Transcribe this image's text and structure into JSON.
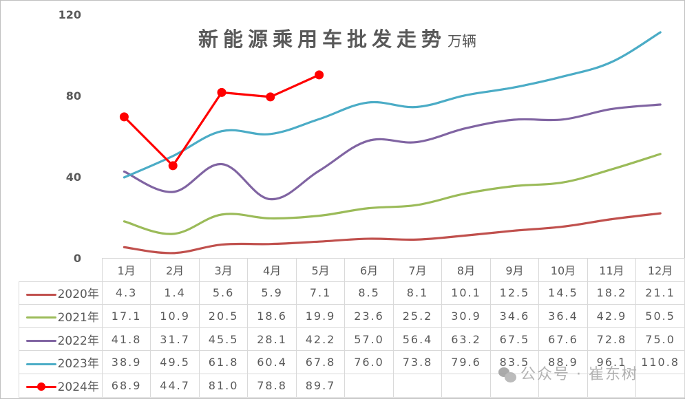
{
  "chart_data": {
    "type": "line",
    "title": "新能源乘用车批发走势",
    "unit": "万辆",
    "xlabel": "",
    "ylabel": "",
    "ylim": [
      0,
      120
    ],
    "yticks": [
      "120",
      "80",
      "40",
      "0"
    ],
    "grid": false,
    "legend_position": "table-left",
    "categories": [
      "1月",
      "2月",
      "3月",
      "4月",
      "5月",
      "6月",
      "7月",
      "8月",
      "9月",
      "10月",
      "11月",
      "12月"
    ],
    "series": [
      {
        "name": "2020年",
        "color": "#c0504d",
        "marker": false,
        "values": [
          4.3,
          1.4,
          5.6,
          5.9,
          7.1,
          8.5,
          8.1,
          10.1,
          12.5,
          14.5,
          18.2,
          21.1
        ],
        "labels": [
          "4.3",
          "1.4",
          "5.6",
          "5.9",
          "7.1",
          "8.5",
          "8.1",
          "10.1",
          "12.5",
          "14.5",
          "18.2",
          "21.1"
        ]
      },
      {
        "name": "2021年",
        "color": "#9bbb59",
        "marker": false,
        "values": [
          17.1,
          10.9,
          20.5,
          18.6,
          19.9,
          23.6,
          25.2,
          30.9,
          34.6,
          36.4,
          42.9,
          50.5
        ],
        "labels": [
          "17.1",
          "10.9",
          "20.5",
          "18.6",
          "19.9",
          "23.6",
          "25.2",
          "30.9",
          "34.6",
          "36.4",
          "42.9",
          "50.5"
        ]
      },
      {
        "name": "2022年",
        "color": "#8064a2",
        "marker": false,
        "values": [
          41.8,
          31.7,
          45.5,
          28.1,
          42.2,
          57.0,
          56.4,
          63.2,
          67.5,
          67.6,
          72.8,
          75.0
        ],
        "labels": [
          "41.8",
          "31.7",
          "45.5",
          "28.1",
          "42.2",
          "57.0",
          "56.4",
          "63.2",
          "67.5",
          "67.6",
          "72.8",
          "75.0"
        ]
      },
      {
        "name": "2023年",
        "color": "#4bacc6",
        "marker": false,
        "values": [
          38.9,
          49.5,
          61.8,
          60.4,
          67.8,
          76.0,
          73.8,
          79.6,
          83.5,
          88.9,
          96.1,
          110.8
        ],
        "labels": [
          "38.9",
          "49.5",
          "61.8",
          "60.4",
          "67.8",
          "76.0",
          "73.8",
          "79.6",
          "83.5",
          "88.9",
          "96.1",
          "110.8"
        ]
      },
      {
        "name": "2024年",
        "color": "#ff0000",
        "marker": true,
        "values": [
          68.9,
          44.7,
          81.0,
          78.8,
          89.7
        ],
        "labels": [
          "68.9",
          "44.7",
          "81.0",
          "78.8",
          "89.7",
          "",
          "",
          "",
          "",
          "",
          "",
          ""
        ]
      }
    ]
  },
  "watermark": {
    "text": "公众号 · 崔东树",
    "icon": "wechat-icon"
  }
}
